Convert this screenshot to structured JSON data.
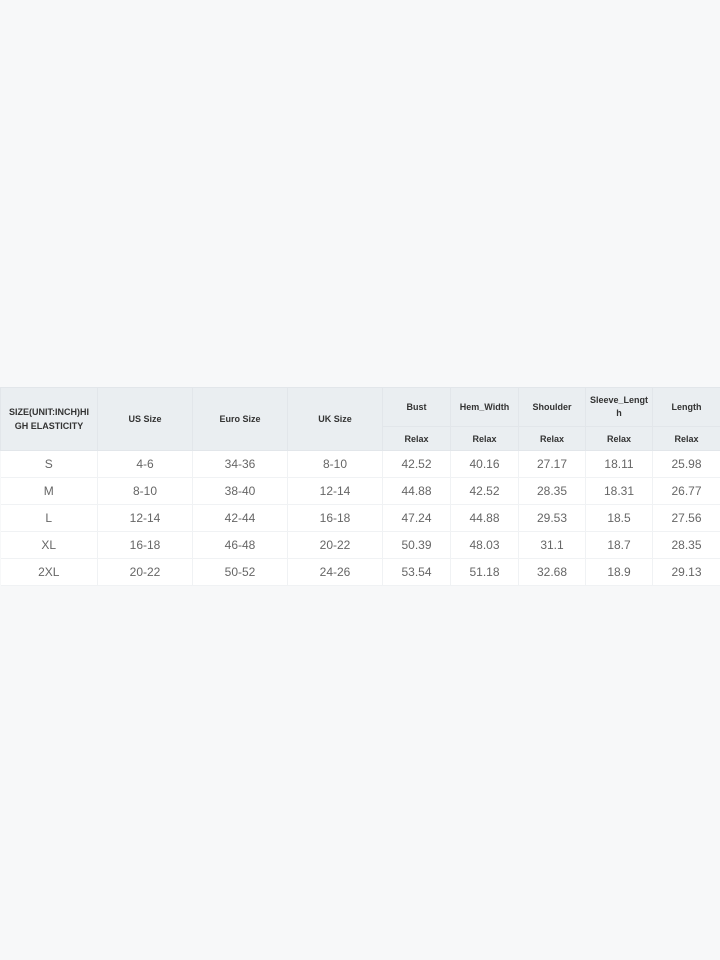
{
  "table": {
    "first_header": "SIZE(UNIT:INCH)HIGH ELASTICITY",
    "headers": [
      "US Size",
      "Euro Size",
      "UK Size",
      "Bust",
      "Hem_Width",
      "Shoulder",
      "Sleeve_Length",
      "Length"
    ],
    "subheader": "Relax",
    "rows": [
      [
        "S",
        "4-6",
        "34-36",
        "8-10",
        "42.52",
        "40.16",
        "27.17",
        "18.11",
        "25.98"
      ],
      [
        "M",
        "8-10",
        "38-40",
        "12-14",
        "44.88",
        "42.52",
        "28.35",
        "18.31",
        "26.77"
      ],
      [
        "L",
        "12-14",
        "42-44",
        "16-18",
        "47.24",
        "44.88",
        "29.53",
        "18.5",
        "27.56"
      ],
      [
        "XL",
        "16-18",
        "46-48",
        "20-22",
        "50.39",
        "48.03",
        "31.1",
        "18.7",
        "28.35"
      ],
      [
        "2XL",
        "20-22",
        "50-52",
        "24-26",
        "53.54",
        "51.18",
        "32.68",
        "18.9",
        "29.13"
      ]
    ]
  }
}
